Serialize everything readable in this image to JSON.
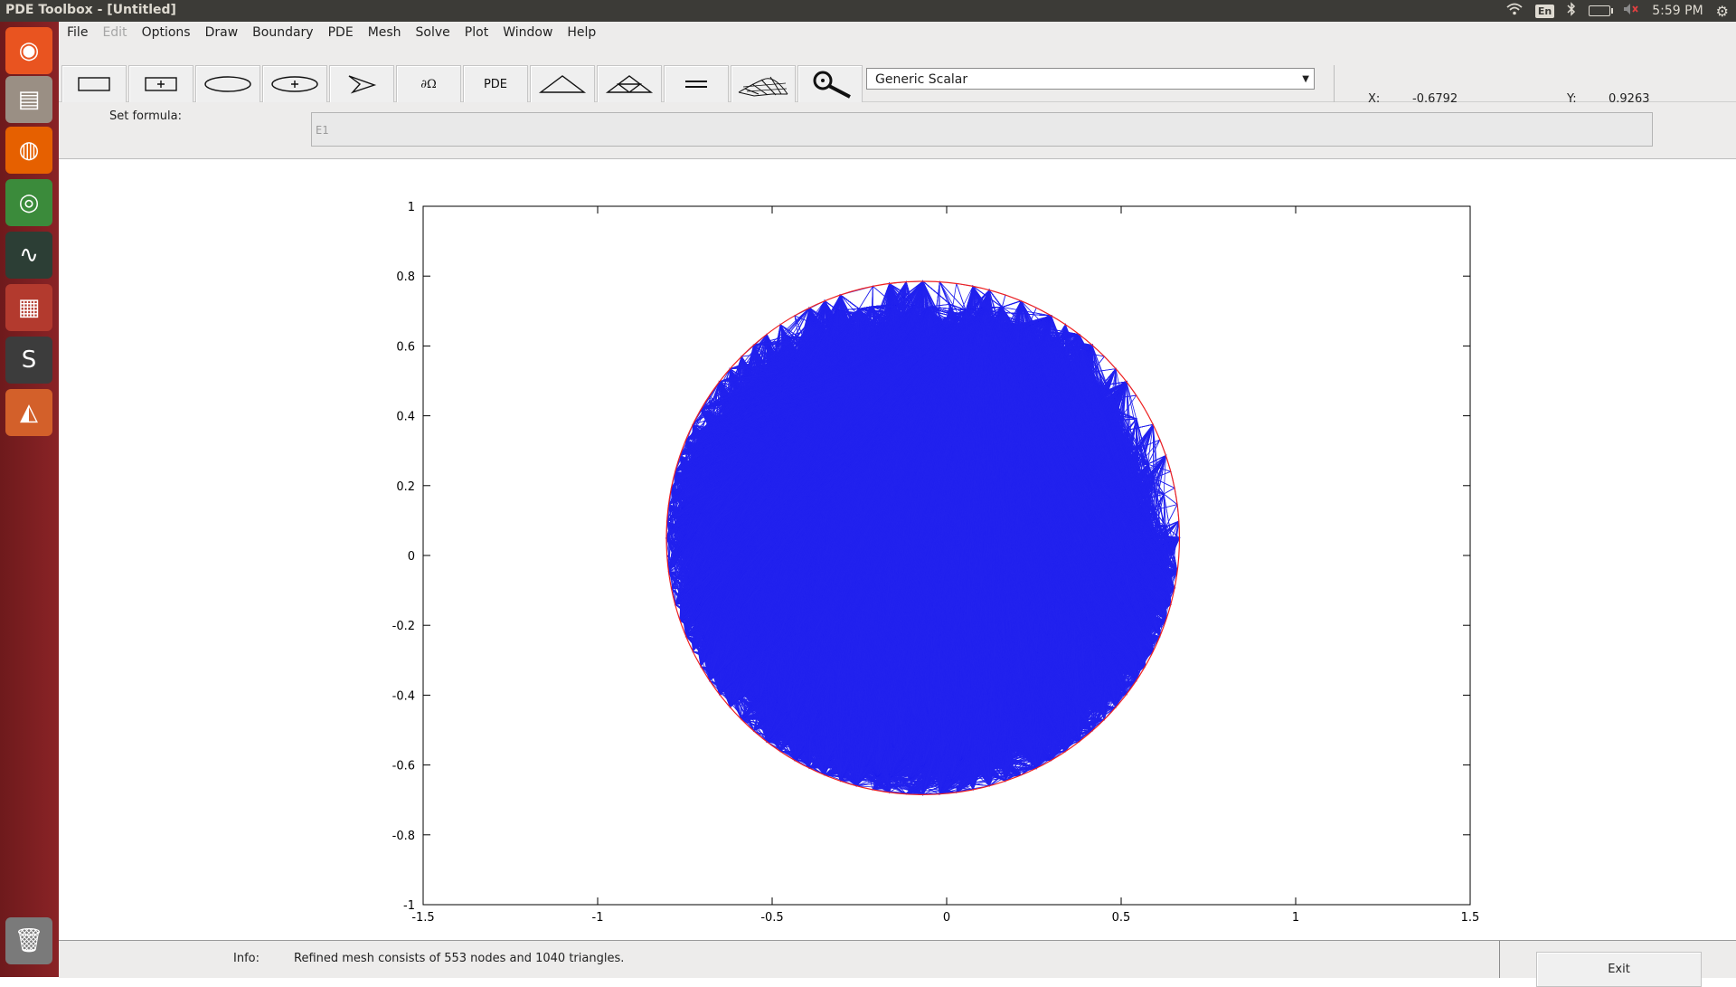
{
  "window": {
    "title": "PDE Toolbox - [Untitled]"
  },
  "system_tray": {
    "language": "En",
    "time": "5:59 PM"
  },
  "launcher": {
    "items": [
      {
        "name": "ubuntu-icon",
        "glyph": "◉",
        "bg": "#e95420"
      },
      {
        "name": "files-icon",
        "glyph": "▤",
        "bg": "#9a8f84"
      },
      {
        "name": "firefox-icon",
        "glyph": "◍",
        "bg": "#e66000"
      },
      {
        "name": "chrome-icon",
        "glyph": "◎",
        "bg": "#3b8b3b"
      },
      {
        "name": "system-monitor-icon",
        "glyph": "∿",
        "bg": "#2c3e35"
      },
      {
        "name": "calendar-app-icon",
        "glyph": "▦",
        "bg": "#b33a2e"
      },
      {
        "name": "sublime-text-icon",
        "glyph": "S",
        "bg": "#3c3c3c"
      },
      {
        "name": "matlab-icon",
        "glyph": "◭",
        "bg": "#d3602a"
      },
      {
        "name": "trash-icon",
        "glyph": "🗑",
        "bg": "#7a7a7a"
      }
    ]
  },
  "menubar": {
    "items": [
      "File",
      "Edit",
      "Options",
      "Draw",
      "Boundary",
      "PDE",
      "Mesh",
      "Solve",
      "Plot",
      "Window",
      "Help"
    ]
  },
  "toolbar": {
    "pde_label": "PDE",
    "boundary_label": "∂Ω",
    "equation_type": "Generic Scalar",
    "coords": {
      "x_label": "X:",
      "x_value": "-0.6792",
      "y_label": "Y:",
      "y_value": "0.9263"
    }
  },
  "formula": {
    "label": "Set formula:",
    "value": "E1"
  },
  "status": {
    "info_label": "Info:",
    "info_text": "Refined mesh consists of 553 nodes and 1040 triangles.",
    "exit_label": "Exit"
  },
  "colors": {
    "mesh": "#2222ee",
    "boundary": "#ee2222"
  },
  "chart_data": {
    "type": "mesh",
    "title": "",
    "xlim": [
      -1.5,
      1.5
    ],
    "ylim": [
      -1,
      1
    ],
    "x_ticks": [
      "-1.5",
      "-1",
      "-0.5",
      "0",
      "0.5",
      "1",
      "1.5"
    ],
    "y_ticks": [
      "1",
      "0.8",
      "0.6",
      "0.4",
      "0.2",
      "0",
      "-0.2",
      "-0.4",
      "-0.6",
      "-0.8",
      "-1"
    ],
    "geometry": {
      "shape": "circle",
      "center": [
        -0.068,
        0.05
      ],
      "radius": 0.735
    },
    "mesh_nodes": 553,
    "mesh_triangles": 1040
  }
}
